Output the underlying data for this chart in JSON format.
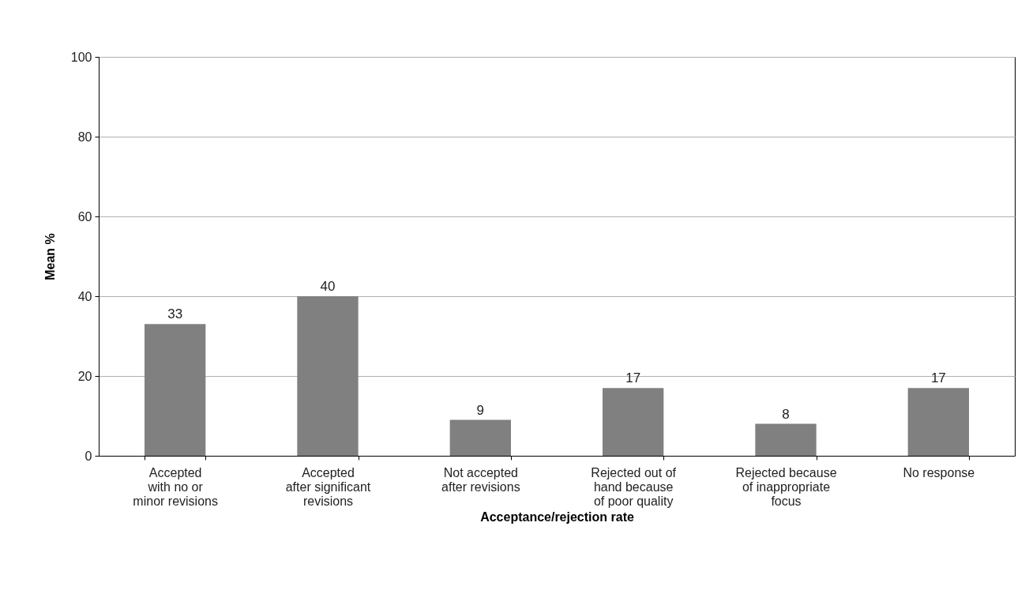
{
  "chart_data": {
    "type": "bar",
    "xlabel": "Acceptance/rejection rate",
    "ylabel": "Mean %",
    "categories": [
      "Accepted\nwith no or\nminor revisions",
      "Accepted\nafter significant\nrevisions",
      "Not accepted\nafter revisions",
      "Rejected out of\nhand because\nof poor quality",
      "Rejected because\nof inappropriate\nfocus",
      "No response"
    ],
    "values": [
      33,
      40,
      9,
      17,
      8,
      17
    ],
    "color": "#808080",
    "ylim": [
      0,
      100
    ],
    "yticks": [
      0,
      20,
      40,
      60,
      80,
      100
    ],
    "grid": "y",
    "data_labels": true
  }
}
